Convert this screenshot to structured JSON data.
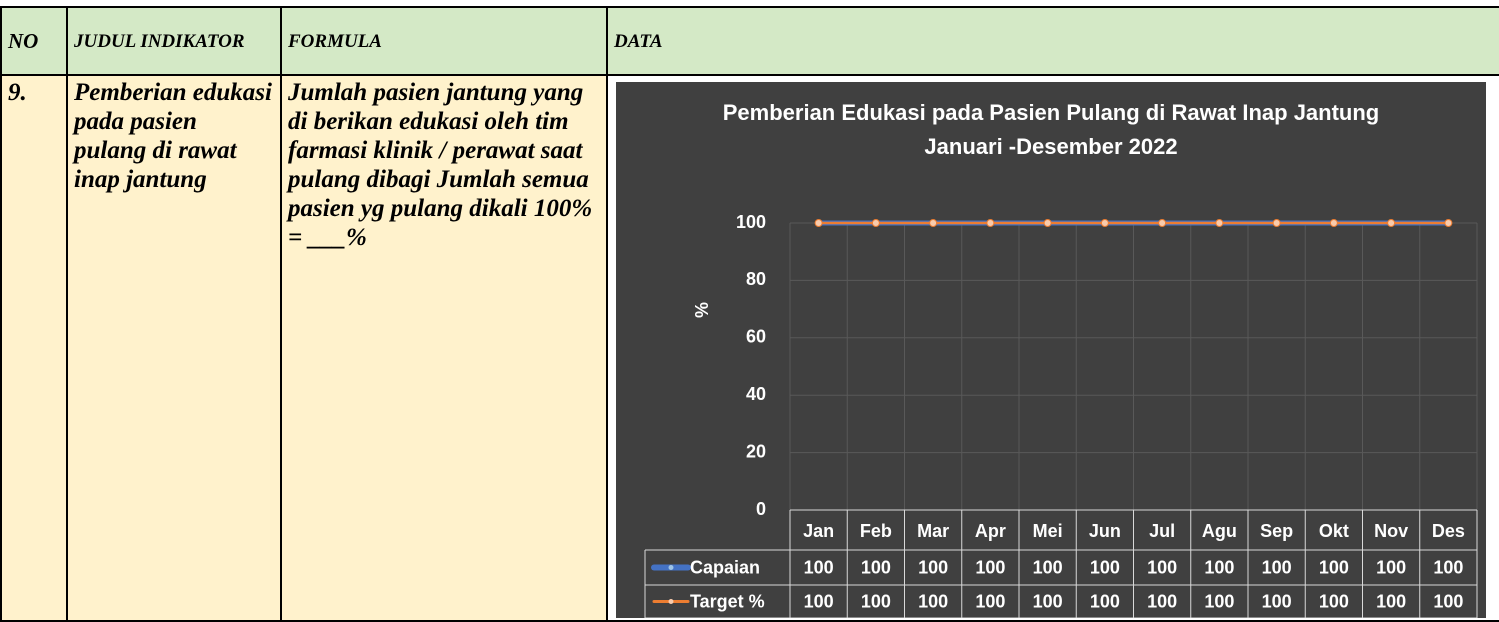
{
  "table": {
    "headers": [
      "NO",
      "JUDUL INDIKATOR",
      "FORMULA",
      "DATA"
    ],
    "rows": [
      [
        "9.",
        "Pemberian edukasi pada pasien pulang di rawat inap jantung",
        "Jumlah pasien jantung yang di berikan edukasi oleh tim farmasi klinik / perawat saat pulang dibagi Jumlah semua pasien yg pulang dikali 100% = ___%"
      ]
    ]
  },
  "chart_data": {
    "type": "line",
    "title": "Pemberian Edukasi pada Pasien Pulang di Rawat Inap Jantung",
    "subtitle": "Januari -Desember 2022",
    "ylabel": "%",
    "categories": [
      "Jan",
      "Feb",
      "Mar",
      "Apr",
      "Mei",
      "Jun",
      "Jul",
      "Agu",
      "Sep",
      "Okt",
      "Nov",
      "Des"
    ],
    "series": [
      {
        "name": "Capaian",
        "color": "#4472c4",
        "values": [
          100,
          100,
          100,
          100,
          100,
          100,
          100,
          100,
          100,
          100,
          100,
          100
        ]
      },
      {
        "name": "Target %",
        "color": "#ed7d31",
        "values": [
          100,
          100,
          100,
          100,
          100,
          100,
          100,
          100,
          100,
          100,
          100,
          100
        ]
      }
    ],
    "ylim": [
      0,
      100
    ],
    "yticks": [
      0,
      20,
      40,
      60,
      80,
      100
    ],
    "grid": true,
    "data_table": true
  }
}
